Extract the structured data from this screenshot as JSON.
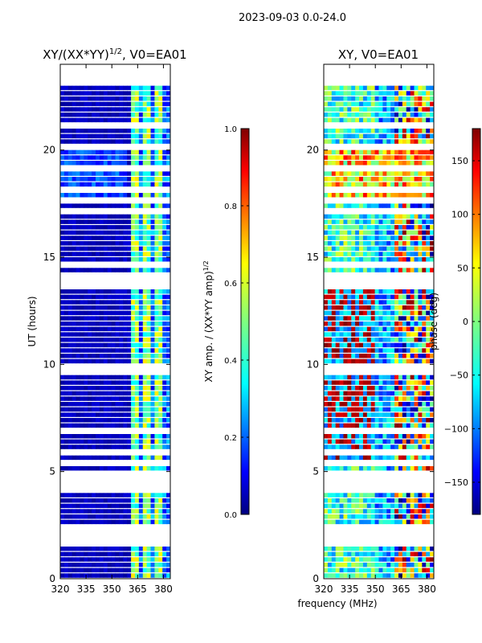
{
  "figure_title": "2023-09-03 0.0-24.0",
  "colors": {
    "jet": [
      "#00007f",
      "#0000ff",
      "#007fff",
      "#00ffff",
      "#7fff7f",
      "#ffff00",
      "#ff7f00",
      "#ff0000",
      "#7f0000"
    ]
  },
  "chart_data": [
    {
      "type": "heatmap",
      "title": "XY/(XX*YY)",
      "title_suffix": "1/2",
      "title_tail": ", V0=EA01",
      "xlabel": "",
      "ylabel": "UT (hours)",
      "xlim": [
        320,
        384
      ],
      "ylim": [
        0,
        24
      ],
      "xticks": [
        320,
        335,
        350,
        365,
        380
      ],
      "yticks": [
        0,
        5,
        10,
        15,
        20
      ],
      "colorbar": {
        "label": "XY amp. / (XX*YY amp)",
        "label_suffix": "1/2",
        "range": [
          0.0,
          1.0
        ],
        "ticks": [
          "0.0",
          "0.2",
          "0.4",
          "0.6",
          "0.8",
          "1.0"
        ],
        "tick_values": [
          0.0,
          0.2,
          0.4,
          0.6,
          0.8,
          1.0
        ]
      },
      "description_values": {
        "typical_value_low_freq": 0.05,
        "typical_value_high_freq_channels": 0.45,
        "flagged_gaps_hours": [
          [
            1.4,
            2.2
          ],
          [
            23.0,
            24.0
          ]
        ]
      }
    },
    {
      "type": "heatmap",
      "title": "XY, V0=EA01",
      "xlabel": "frequency (MHz)",
      "ylabel": "",
      "xlim": [
        320,
        384
      ],
      "ylim": [
        0,
        24
      ],
      "xticks": [
        320,
        335,
        350,
        365,
        380
      ],
      "yticks": [
        0,
        5,
        10,
        15,
        20
      ],
      "colorbar": {
        "label": "phase (deg)",
        "range": [
          -180,
          180
        ],
        "ticks": [
          "−150",
          "−100",
          "−50",
          "0",
          "50",
          "100",
          "150"
        ],
        "tick_values": [
          -150,
          -100,
          -50,
          0,
          50,
          100,
          150
        ]
      }
    }
  ]
}
